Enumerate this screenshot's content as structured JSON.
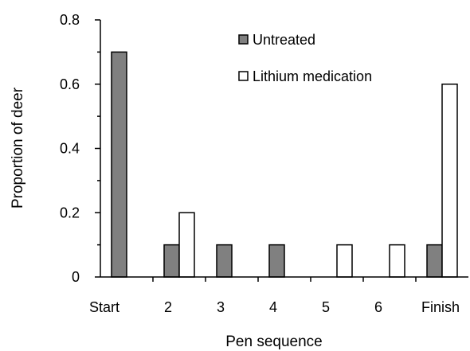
{
  "chart_data": {
    "type": "bar",
    "title": "",
    "xlabel": "Pen sequence",
    "ylabel": "Proportion of deer",
    "categories": [
      "Start",
      "2",
      "3",
      "4",
      "5",
      "6",
      "Finish"
    ],
    "series": [
      {
        "name": "Untreated",
        "values": [
          0.7,
          0.1,
          0.1,
          0.1,
          0,
          0,
          0.1
        ],
        "color": "#808080"
      },
      {
        "name": "Lithium medication",
        "values": [
          0,
          0.2,
          0,
          0,
          0.1,
          0.1,
          0.6
        ],
        "color": "#ffffff"
      }
    ],
    "ylim": [
      0,
      0.8
    ],
    "yticks": [
      "0",
      "0.2",
      "0.4",
      "0.6",
      "0.8"
    ],
    "grid": false,
    "legend_position": "top-right"
  }
}
